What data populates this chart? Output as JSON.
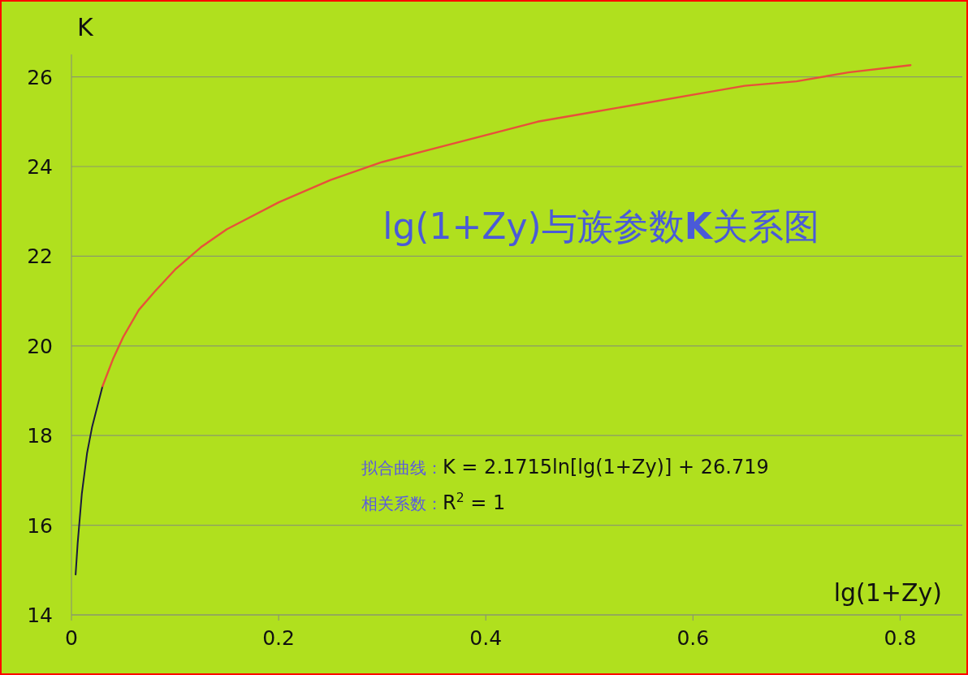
{
  "chart_data": {
    "type": "line",
    "title": "lg(1+Zy)与族参数**K**关系图",
    "xlabel": "lg(1+Zy)",
    "ylabel": "K",
    "annotations": [
      "拟合曲线：K = 2.1715ln[lg(1+Zy)] + 26.719",
      "相关系数：R$^{2}$ = 1"
    ],
    "xlim": [
      0,
      0.86
    ],
    "ylim": [
      14,
      26.5
    ],
    "xticks": [
      0,
      0.2,
      0.4,
      0.6,
      0.8
    ],
    "yticks": [
      14,
      16,
      18,
      20,
      22,
      24,
      26
    ],
    "grid": "y",
    "line_style": "solid",
    "series": [
      {
        "color": "#1a1a40",
        "x": [
          0.004,
          0.006,
          0.01,
          0.015,
          0.02,
          0.03
        ],
        "values": [
          14.9,
          15.6,
          16.7,
          17.6,
          18.2,
          19.1
        ]
      },
      {
        "color": "#e8503a",
        "x": [
          0.03,
          0.04,
          0.05,
          0.065,
          0.08,
          0.1,
          0.125,
          0.15,
          0.2,
          0.25,
          0.3,
          0.35,
          0.4,
          0.45,
          0.5,
          0.55,
          0.6,
          0.65,
          0.7,
          0.75,
          0.81
        ],
        "values": [
          19.1,
          19.7,
          20.2,
          20.8,
          21.2,
          21.7,
          22.2,
          22.6,
          23.2,
          23.7,
          24.1,
          24.4,
          24.7,
          25.0,
          25.2,
          25.4,
          25.6,
          25.8,
          25.9,
          26.1,
          26.26
        ]
      }
    ]
  }
}
